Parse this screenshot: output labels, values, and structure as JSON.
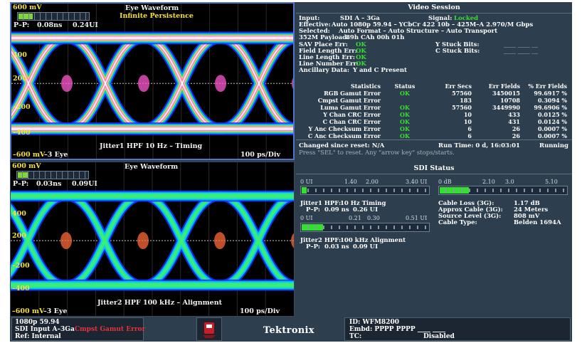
{
  "eye_top": {
    "title": "Eye Waveform",
    "subtitle": "Infinite Persistence",
    "pp_label": "P–P:",
    "pp_ns": "0.08ns",
    "pp_ui": "0.24UI",
    "mv_top": "600 mV",
    "mv_bottom": "–600 mV",
    "y_labels": [
      "400",
      "200",
      "0",
      "–200",
      "–400"
    ],
    "eye_count": "–3 Eye",
    "filter": "Jitter1 HPF 10 Hz – Timing",
    "scale": "100 ps/Div",
    "meter_level": 0.2
  },
  "eye_bottom": {
    "title": "Eye Waveform",
    "pp_label": "P–P:",
    "pp_ns": "0.03ns",
    "pp_ui": "0.09UI",
    "mv_top": "600 mV",
    "mv_bottom": "–600 mV",
    "y_labels": [
      "400",
      "200",
      "0",
      "–200",
      "–400"
    ],
    "eye_count": "–3 Eye",
    "filter": "Jitter2 HPF 100 kHz – Alignment",
    "scale": "100 ps/Div",
    "meter_level": 0.15
  },
  "video_session": {
    "title": "Video Session",
    "input_label": "Input:",
    "input_value": "SDI A – 3Ga",
    "signal_label": "Signal:",
    "signal_value": "Locked",
    "effective_label": "Effective:",
    "effective_value": "Auto 1080p 59.94 – YCbCr 422 10b – 425M–A 2.970/M Gbps",
    "selected_label": "Selected:",
    "selected_value": "Auto Format – Auto Structure – Auto Transport",
    "payload_label": "352M Payload:",
    "payload_value": "89h CAh 00h 01h",
    "sav_label": "SAV Place Err:",
    "sav_value": "OK",
    "y_stuck_label": "Y Stuck Bits:",
    "y_stuck_value": "____ ____ __",
    "field_len_label": "Field Length Err:",
    "field_len_value": "OK",
    "c_stuck_label": "C Stuck Bits:",
    "c_stuck_value": "____ ____ __",
    "line_len_label": "Line Length Err:",
    "line_len_value": "OK",
    "line_num_label": "Line Number Err:",
    "line_num_value": "OK",
    "anc_label": "Ancillary Data:",
    "anc_value": "Y and C Present",
    "stats_headers": [
      "Statistics",
      "Status",
      "Err Secs",
      "Err Fields",
      "% Err Fields"
    ],
    "stats_rows": [
      [
        "RGB Gamut Error",
        "OK",
        "57560",
        "3450015",
        "99.6917 %"
      ],
      [
        "Cmpst Gamut Error",
        "",
        "183",
        "10708",
        "0.3094 %"
      ],
      [
        "Luma Gamut Error",
        "OK",
        "57560",
        "3449990",
        "99.6906 %"
      ],
      [
        "Y Chan CRC Error",
        "OK",
        "10",
        "433",
        "0.0125 %"
      ],
      [
        "C Chan CRC Error",
        "OK",
        "10",
        "431",
        "0.0124 %"
      ],
      [
        "Y Anc Checksum Error",
        "OK",
        "6",
        "26",
        "0.0007 %"
      ],
      [
        "C Anc Checksum Error",
        "OK",
        "6",
        "26",
        "0.0007 %"
      ]
    ],
    "changed_label": "Changed since reset: N/A",
    "run_time": "Run Time: 0 d, 16:03:01",
    "running": "Running",
    "hint": "Press \"SEL\" to reset.   Any \"arrow key\" stops/starts."
  },
  "sdi_status": {
    "title": "SDI Status",
    "ui_scale_1": [
      "0 UI",
      "1.40",
      "2.00",
      "3.40 UI"
    ],
    "db_scale": [
      "0 dB",
      "2.10",
      "3.0",
      "5.10"
    ],
    "jitter1_label": "Jitter1 HPF:",
    "jitter1_value": "10 Hz Timing",
    "jitter1_pp_label": "P–P:",
    "jitter1_pp_ns": "0.09 ns",
    "jitter1_pp_ui": "0.26 UI",
    "ui_scale_2": [
      "0 UI",
      "0.21",
      "0.30",
      "0.51 UI"
    ],
    "cable_loss_label": "Cable Loss (3G):",
    "cable_loss_value": "1.17 dB",
    "approx_cable_label": "Approx Cable (3G):",
    "approx_cable_value": "24 Meters",
    "source_level_label": "Source Level (3G):",
    "source_level_value": "808 mV",
    "cable_type_label": "Cable Type:",
    "cable_type_value": "Belden 1694A",
    "jitter2_label": "Jitter2 HPF:",
    "jitter2_value": "100 kHz Alignment",
    "jitter2_pp_label": "P–P:",
    "jitter2_pp_ns": "0.03 ns",
    "jitter2_pp_ui": "0.09 UI",
    "meter1_level": 0.04,
    "meter_db_level": 0.23,
    "meter2_level": 0.17
  },
  "status_bar": {
    "format": "1080p 59.94",
    "input": "SDI Input A–3Ga",
    "ref": "Ref: Internal",
    "alarm": "Cmpst Gamut Error",
    "brand": "Tektronix",
    "id": "ID: WFM8200",
    "embd": "Embd: PPPP PPPP ____ ____",
    "tc_label": "TC:",
    "tc_value": "Disabled"
  },
  "colors": {
    "ok": "#35e030",
    "alarm": "#e8323a",
    "panel_bg": "#2d3e4e",
    "label_yellow": "#f4e23b"
  }
}
